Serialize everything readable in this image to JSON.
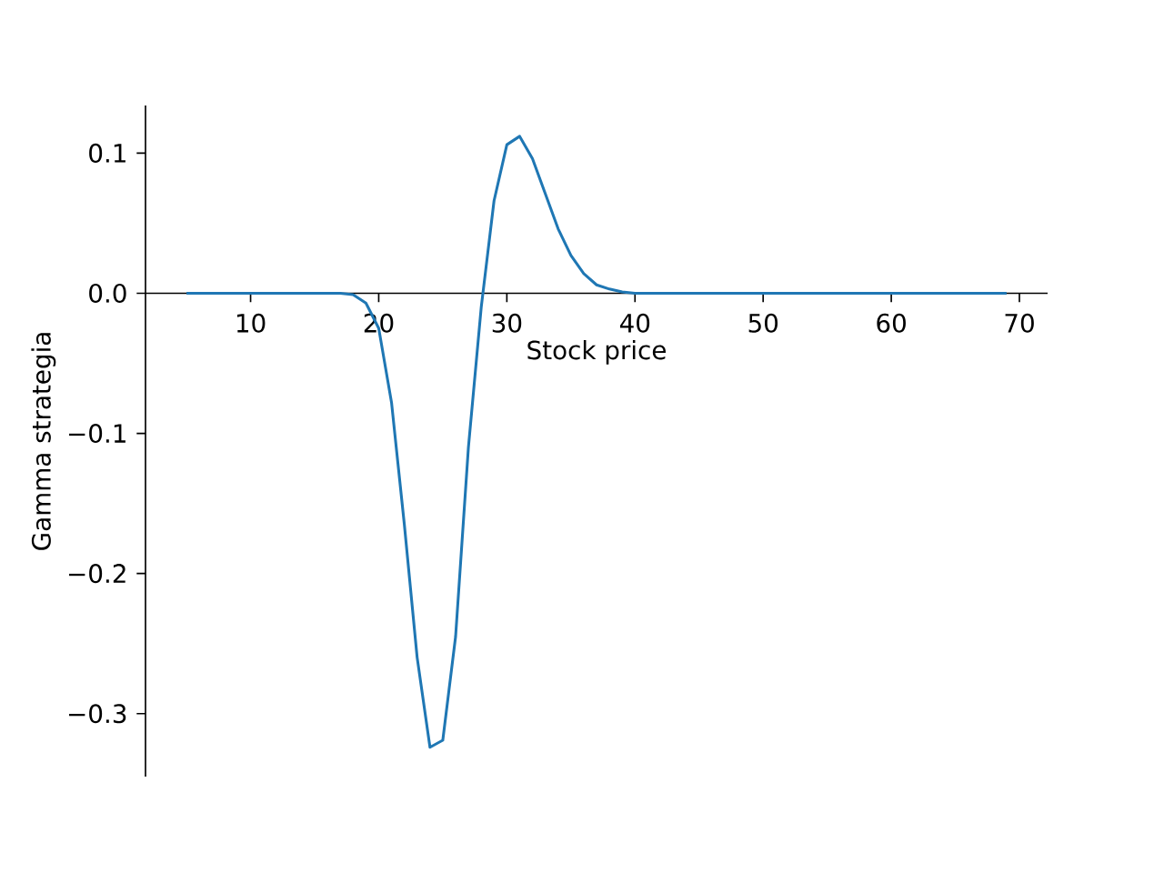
{
  "chart_data": {
    "type": "line",
    "xlabel": "Stock price",
    "ylabel": "Gamma strategia",
    "x": [
      5,
      6,
      7,
      8,
      9,
      10,
      11,
      12,
      13,
      14,
      15,
      16,
      17,
      18,
      19,
      20,
      21,
      22,
      23,
      24,
      25,
      26,
      27,
      28,
      29,
      30,
      31,
      32,
      33,
      34,
      35,
      36,
      37,
      38,
      39,
      40,
      41,
      42,
      43,
      44,
      45,
      46,
      47,
      48,
      49,
      50,
      51,
      52,
      53,
      54,
      55,
      56,
      57,
      58,
      59,
      60,
      61,
      62,
      63,
      64,
      65,
      66,
      67,
      68,
      69
    ],
    "series": [
      {
        "color": "#1f77b4",
        "values": [
          0,
          0,
          0,
          0,
          0,
          0,
          0,
          0,
          0,
          0,
          0,
          0,
          0,
          -0.001,
          -0.007,
          -0.025,
          -0.078,
          -0.165,
          -0.26,
          -0.324,
          -0.319,
          -0.245,
          -0.11,
          -0.01,
          0.066,
          0.106,
          0.112,
          0.096,
          0.071,
          0.046,
          0.027,
          0.014,
          0.006,
          0.003,
          0.001,
          0,
          0,
          0,
          0,
          0,
          0,
          0,
          0,
          0,
          0,
          0,
          0,
          0,
          0,
          0,
          0,
          0,
          0,
          0,
          0,
          0,
          0,
          0,
          0,
          0,
          0,
          0,
          0,
          0,
          0
        ]
      }
    ],
    "xlim": [
      1.8,
      72.2
    ],
    "ylim": [
      -0.345,
      0.134
    ],
    "xticks": [
      10,
      20,
      30,
      40,
      50,
      60,
      70
    ],
    "yticks": [
      {
        "value": -0.3,
        "label": "−0.3"
      },
      {
        "value": -0.2,
        "label": "−0.2"
      },
      {
        "value": -0.1,
        "label": "−0.1"
      },
      {
        "value": 0.0,
        "label": "0.0"
      },
      {
        "value": 0.1,
        "label": "0.1"
      }
    ],
    "marker": "none",
    "line_style": "solid"
  }
}
